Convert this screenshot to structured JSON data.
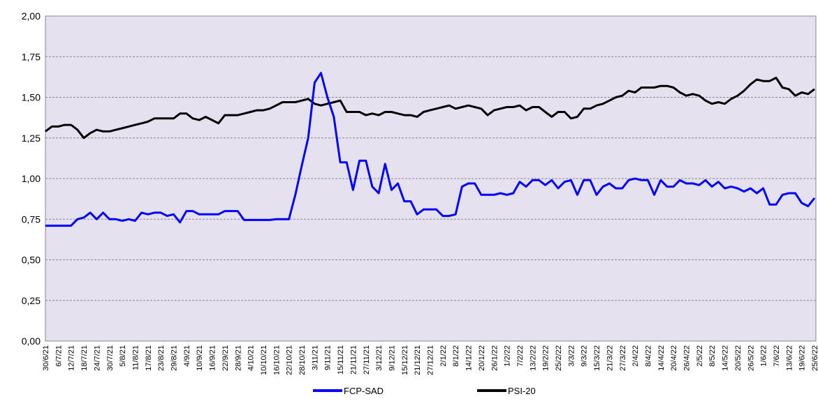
{
  "chart_data": {
    "type": "line",
    "categories": [
      "30/6/21",
      null,
      "6/7/21",
      null,
      "12/7/21",
      null,
      "18/7/21",
      null,
      "24/7/21",
      null,
      "30/7/21",
      null,
      "5/8/21",
      null,
      "11/8/21",
      null,
      "17/8/21",
      null,
      "23/8/21",
      null,
      "29/8/21",
      null,
      "4/9/21",
      null,
      "10/9/21",
      null,
      "16/9/21",
      null,
      "22/9/21",
      null,
      "28/9/21",
      null,
      "4/10/21",
      null,
      "10/10/21",
      null,
      "16/10/21",
      null,
      "22/10/21",
      null,
      "28/10/21",
      null,
      "3/11/21",
      null,
      "9/11/21",
      null,
      "15/11/21",
      null,
      "21/11/21",
      null,
      "27/11/21",
      null,
      "3/12/21",
      null,
      "9/12/21",
      null,
      "15/12/21",
      null,
      "21/12/21",
      null,
      "27/12/21",
      null,
      "2/1/22",
      null,
      "8/1/22",
      null,
      "14/1/22",
      null,
      "20/1/22",
      null,
      "26/1/22",
      null,
      "1/2/22",
      null,
      "7/2/22",
      null,
      "13/2/22",
      null,
      "19/2/22",
      null,
      "25/2/22",
      null,
      "3/3/22",
      null,
      "9/3/22",
      null,
      "15/3/22",
      null,
      "21/3/22",
      null,
      "27/3/22",
      null,
      "2/4/22",
      null,
      "8/4/22",
      null,
      "14/4/22",
      null,
      "20/4/22",
      null,
      "26/4/22",
      null,
      "2/5/22",
      null,
      "8/5/22",
      null,
      "14/5/22",
      null,
      "20/5/22",
      null,
      "26/5/22",
      null,
      "1/6/22",
      null,
      "7/6/22",
      null,
      "13/6/22",
      null,
      "19/6/22",
      null,
      "25/6/22"
    ],
    "series": [
      {
        "name": "FCP-SAD",
        "color": "#0000ff",
        "values": [
          0.71,
          0.71,
          0.71,
          0.71,
          0.71,
          0.75,
          0.76,
          0.79,
          0.75,
          0.79,
          0.75,
          0.75,
          0.74,
          0.75,
          0.74,
          0.79,
          0.78,
          0.79,
          0.79,
          0.77,
          0.78,
          0.73,
          0.8,
          0.8,
          0.78,
          0.78,
          0.78,
          0.78,
          0.8,
          0.8,
          0.8,
          0.745,
          0.745,
          0.745,
          0.745,
          0.745,
          0.75,
          0.75,
          0.75,
          0.9,
          1.08,
          1.25,
          1.59,
          1.65,
          1.5,
          1.38,
          1.1,
          1.1,
          0.93,
          1.11,
          1.11,
          0.95,
          0.91,
          1.09,
          0.93,
          0.97,
          0.86,
          0.86,
          0.78,
          0.81,
          0.81,
          0.81,
          0.77,
          0.77,
          0.78,
          0.95,
          0.97,
          0.97,
          0.9,
          0.9,
          0.9,
          0.91,
          0.9,
          0.91,
          0.98,
          0.95,
          0.99,
          0.99,
          0.96,
          0.99,
          0.94,
          0.98,
          0.99,
          0.9,
          0.99,
          0.99,
          0.9,
          0.95,
          0.97,
          0.94,
          0.94,
          0.99,
          1.0,
          0.99,
          0.99,
          0.9,
          0.99,
          0.95,
          0.95,
          0.99,
          0.97,
          0.97,
          0.96,
          0.99,
          0.95,
          0.98,
          0.94,
          0.95,
          0.94,
          0.92,
          0.94,
          0.91,
          0.94,
          0.84,
          0.84,
          0.9,
          0.91,
          0.91,
          0.85,
          0.83,
          0.88
        ]
      },
      {
        "name": "PSI-20",
        "color": "#000000",
        "values": [
          1.29,
          1.32,
          1.32,
          1.33,
          1.33,
          1.3,
          1.25,
          1.28,
          1.3,
          1.29,
          1.29,
          1.3,
          1.31,
          1.32,
          1.33,
          1.34,
          1.35,
          1.37,
          1.37,
          1.37,
          1.37,
          1.4,
          1.4,
          1.37,
          1.36,
          1.38,
          1.36,
          1.34,
          1.39,
          1.39,
          1.39,
          1.4,
          1.41,
          1.42,
          1.42,
          1.43,
          1.45,
          1.47,
          1.47,
          1.47,
          1.48,
          1.49,
          1.46,
          1.45,
          1.46,
          1.47,
          1.48,
          1.41,
          1.41,
          1.41,
          1.39,
          1.4,
          1.39,
          1.41,
          1.41,
          1.4,
          1.39,
          1.39,
          1.38,
          1.41,
          1.42,
          1.43,
          1.44,
          1.45,
          1.43,
          1.44,
          1.45,
          1.44,
          1.43,
          1.39,
          1.42,
          1.43,
          1.44,
          1.44,
          1.45,
          1.42,
          1.44,
          1.44,
          1.41,
          1.38,
          1.41,
          1.41,
          1.37,
          1.38,
          1.43,
          1.43,
          1.45,
          1.46,
          1.48,
          1.5,
          1.51,
          1.54,
          1.53,
          1.56,
          1.56,
          1.56,
          1.57,
          1.57,
          1.56,
          1.53,
          1.51,
          1.52,
          1.51,
          1.48,
          1.46,
          1.47,
          1.46,
          1.49,
          1.51,
          1.54,
          1.58,
          1.61,
          1.6,
          1.6,
          1.62,
          1.56,
          1.55,
          1.51,
          1.53,
          1.52,
          1.55
        ]
      }
    ],
    "ylim": [
      0,
      2
    ],
    "yticks": [
      {
        "value": 0,
        "label": "0,00"
      },
      {
        "value": 0.25,
        "label": "0,25"
      },
      {
        "value": 0.5,
        "label": "0,50"
      },
      {
        "value": 0.75,
        "label": "0,75"
      },
      {
        "value": 1,
        "label": "1,00"
      },
      {
        "value": 1.25,
        "label": "1,25"
      },
      {
        "value": 1.5,
        "label": "1,50"
      },
      {
        "value": 1.75,
        "label": "1,75"
      },
      {
        "value": 2,
        "label": "2,00"
      }
    ],
    "grid": true,
    "legend": "bottom"
  }
}
